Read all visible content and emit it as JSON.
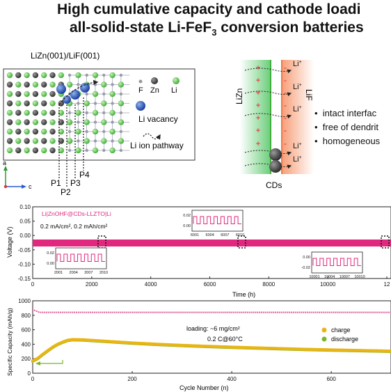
{
  "title": {
    "line1": "High cumulative capacity and cathode loadi",
    "line2_prefix": "all-solid-state Li-FeF",
    "line2_sub": "3",
    "line2_suffix": " conversion batteries"
  },
  "lattice": {
    "header": "LiZn(001)/LiF(001)",
    "legend": {
      "f": "F",
      "zn": "Zn",
      "li": "Li",
      "vacancy": "Li vacancy",
      "pathway": "Li ion pathway"
    },
    "probes": [
      "P1",
      "P2",
      "P3",
      "P4"
    ],
    "axes": {
      "a": "a",
      "c": "c"
    }
  },
  "interface": {
    "left_label": "LiZn",
    "right_label": "LiF",
    "ion": "Li",
    "ion_sup": "+",
    "bottom_label": "CDs",
    "bullets": [
      "intact interfac",
      "free of dendrit",
      "homogeneous"
    ]
  },
  "voltage_plot": {
    "legend": "Li|ZnOHF@CDs-LLZTO|Li",
    "condition": "0.2 mA/cm², 0.2 mAh/cm²",
    "ylabel": "Voltage (V)",
    "xlabel": "Time (h)",
    "yticks": [
      "0.10",
      "0.05",
      "0.00",
      "-0.05",
      "-0.10",
      "-0.15"
    ],
    "xticks": [
      "0",
      "2000",
      "4000",
      "6000",
      "8000",
      "10000",
      "12"
    ],
    "insets": [
      {
        "yticks": [
          "0.02",
          "0.00"
        ],
        "xticks": [
          "2001",
          "2004",
          "2007",
          "2010"
        ]
      },
      {
        "yticks": [
          "0.02",
          "0.00"
        ],
        "xticks": [
          "6001",
          "6004",
          "6007",
          "6010"
        ]
      },
      {
        "yticks": [
          "0.00",
          "-0.02"
        ],
        "xticks": [
          "10001",
          "10004",
          "10007",
          "10010"
        ]
      }
    ]
  },
  "capacity_plot": {
    "ylabel": "Specific Capacity (mAh/g)",
    "xlabel": "Cycle Number (n)",
    "yticks": [
      "1000",
      "800",
      "600",
      "400",
      "200",
      "0"
    ],
    "xticks": [
      "0",
      "200",
      "400",
      "600"
    ],
    "loading": "loading: ~6 mg/cm²",
    "rate": "0.2 C@60°C",
    "legend": [
      "charge",
      "discharge"
    ],
    "colors": {
      "charge": "#e8b514",
      "discharge": "#79b82a",
      "ce": "#e0609a"
    }
  },
  "chart_data": [
    {
      "type": "line",
      "title": "",
      "legend": [
        "Li|ZnOHF@CDs-LLZTO|Li"
      ],
      "xlabel": "Time (h)",
      "ylabel": "Voltage (V)",
      "xlim": [
        0,
        12000
      ],
      "ylim": [
        -0.15,
        0.1
      ],
      "series": [
        {
          "name": "Li|ZnOHF@CDs-LLZTO|Li",
          "x": [
            0,
            12000
          ],
          "y_min": [
            -0.01,
            -0.01
          ],
          "y_max": [
            0.01,
            0.01
          ]
        }
      ]
    },
    {
      "type": "scatter",
      "title": "",
      "xlabel": "Cycle Number (n)",
      "ylabel": "Specific Capacity (mAh/g)",
      "xlim": [
        0,
        720
      ],
      "ylim": [
        0,
        1000
      ],
      "series": [
        {
          "name": "charge",
          "x": [
            0,
            10,
            20,
            30,
            40,
            50,
            60,
            70,
            80,
            100,
            150,
            200,
            250,
            300,
            350,
            400,
            450,
            500,
            550,
            600,
            650,
            700,
            720
          ],
          "y": [
            170,
            205,
            260,
            310,
            360,
            400,
            430,
            455,
            465,
            462,
            440,
            418,
            400,
            385,
            372,
            360,
            350,
            340,
            330,
            322,
            315,
            308,
            305
          ]
        },
        {
          "name": "discharge",
          "x": [
            0,
            10,
            20,
            30,
            40,
            50,
            60,
            70,
            80,
            100,
            150,
            200,
            250,
            300,
            350,
            400,
            450,
            500,
            550,
            600,
            650,
            700,
            720
          ],
          "y": [
            165,
            200,
            255,
            305,
            355,
            395,
            425,
            450,
            460,
            457,
            435,
            413,
            395,
            380,
            367,
            355,
            345,
            335,
            325,
            317,
            310,
            303,
            300
          ]
        }
      ]
    }
  ]
}
